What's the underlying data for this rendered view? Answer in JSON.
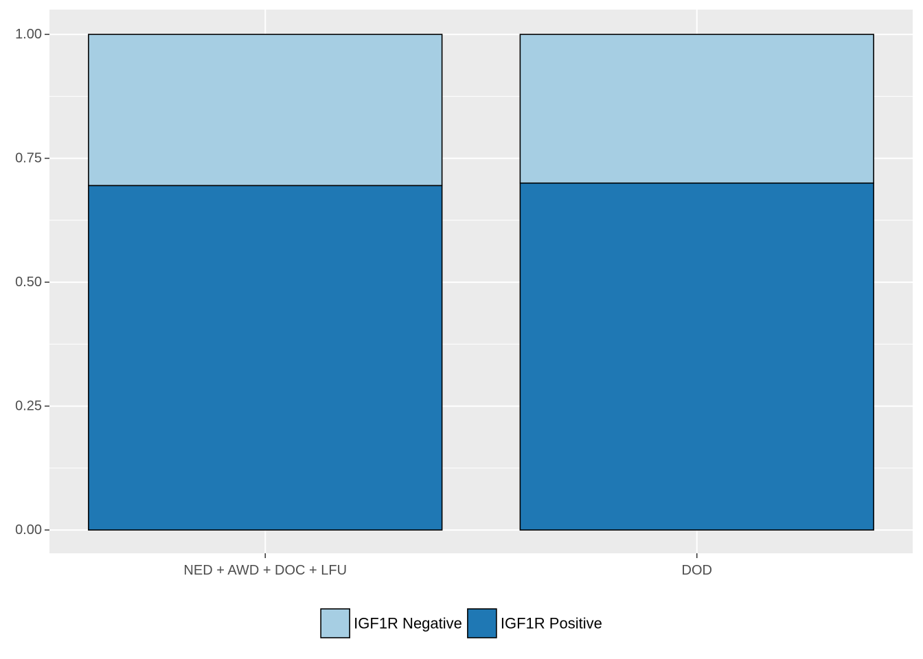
{
  "chart_data": {
    "type": "bar",
    "stacked": true,
    "categories": [
      "NED + AWD + DOC + LFU",
      "DOD"
    ],
    "series": [
      {
        "name": "IGF1R Positive",
        "values": [
          0.695,
          0.7
        ],
        "color": "#1f78b4"
      },
      {
        "name": "IGF1R Negative",
        "values": [
          0.305,
          0.3
        ],
        "color": "#a6cee3"
      }
    ],
    "ylim": [
      -0.047,
      1.05
    ],
    "yticks": [
      0.0,
      0.25,
      0.5,
      0.75,
      1.0
    ],
    "ytick_labels": [
      "0.00",
      "0.25",
      "0.50",
      "0.75",
      "1.00"
    ],
    "legend": {
      "placement": "bottom",
      "entries": [
        {
          "label": "IGF1R Negative",
          "color": "#a6cee3"
        },
        {
          "label": "IGF1R Positive",
          "color": "#1f78b4"
        }
      ]
    },
    "grid": true,
    "panel_background": "#ebebeb",
    "grid_color": "#ffffff"
  }
}
